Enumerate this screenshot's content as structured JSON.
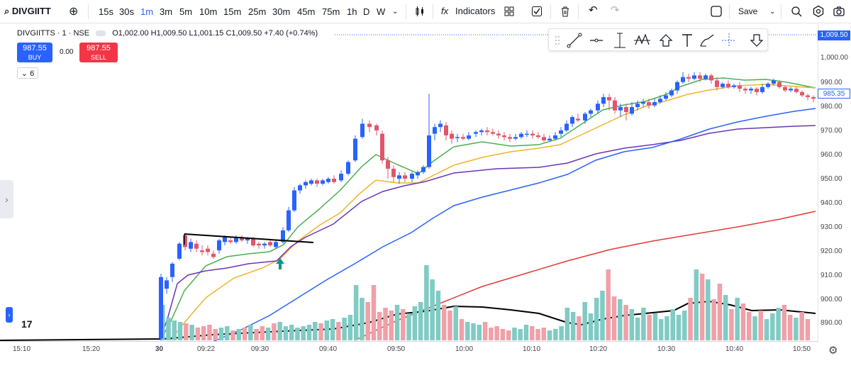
{
  "toolbar": {
    "symbol": "DIVGIITT",
    "timeframes": [
      "15s",
      "30s",
      "1m",
      "3m",
      "5m",
      "10m",
      "15m",
      "25m",
      "30m",
      "45m",
      "75m",
      "1h",
      "D",
      "W"
    ],
    "active_timeframe": "1m",
    "indicators_label": "Indicators",
    "fx_label": "fx",
    "save_label": "Save"
  },
  "legend": {
    "symbol_desc": "DIVGIITTS · 1 · NSE",
    "open": "O1,002.00",
    "high": "H1,009.50",
    "low": "L1,001.15",
    "close": "C1,009.50",
    "change": "+7.40 (+0.74%)"
  },
  "trade": {
    "buy_price": "987.55",
    "buy_label": "BUY",
    "sell_price": "987.55",
    "sell_label": "SELL",
    "spread": "0.00"
  },
  "indicator_count": "6",
  "price_axis": {
    "ticks": [
      "1,000.00",
      "990.00",
      "980.00",
      "970.00",
      "960.00",
      "950.00",
      "940.00",
      "930.00",
      "920.00",
      "910.00",
      "900.00",
      "890.00"
    ],
    "last_price_tag": "985.35",
    "top_price_tag": "1,009.50"
  },
  "time_axis": {
    "ticks": [
      "15:10",
      "15:20",
      "30",
      "09:22",
      "09:30",
      "09:40",
      "09:50",
      "10:00",
      "10:10",
      "10:20",
      "10:30",
      "10:40",
      "10:50"
    ]
  },
  "colors": {
    "up": "#2962ff",
    "down": "#e0566b",
    "ema_green": "#4caf50",
    "ema_yellow": "#f0b429",
    "ema_purple": "#6b35b8",
    "ema_blue": "#2962ff",
    "ema_red": "#e53935",
    "vol_up": "#80cbc4",
    "vol_down": "#f0a0a8"
  },
  "logo_text": "17"
}
